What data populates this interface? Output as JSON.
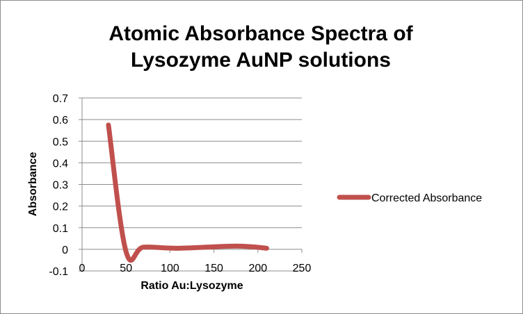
{
  "chart_data": {
    "type": "line",
    "title_lines": [
      "Atomic Absorbance Spectra of",
      "Lysozyme AuNP solutions"
    ],
    "xlabel": "Ratio Au:Lysozyme",
    "ylabel": "Absorbance",
    "xlim": [
      0,
      250
    ],
    "ylim": [
      -0.1,
      0.7
    ],
    "x_ticks": [
      "0",
      "50",
      "100",
      "150",
      "200",
      "250"
    ],
    "y_ticks": [
      "-0.1",
      "0",
      "0.1",
      "0.2",
      "0.3",
      "0.4",
      "0.5",
      "0.6",
      "0.7"
    ],
    "grid": "horizontal",
    "legend_position": "right",
    "series": [
      {
        "name": "Corrected Absorbance",
        "color": "#c0504d",
        "x": [
          30,
          50,
          70,
          110,
          175,
          210
        ],
        "y": [
          0.575,
          -0.01,
          0.01,
          0.005,
          0.015,
          0.005
        ]
      }
    ]
  }
}
